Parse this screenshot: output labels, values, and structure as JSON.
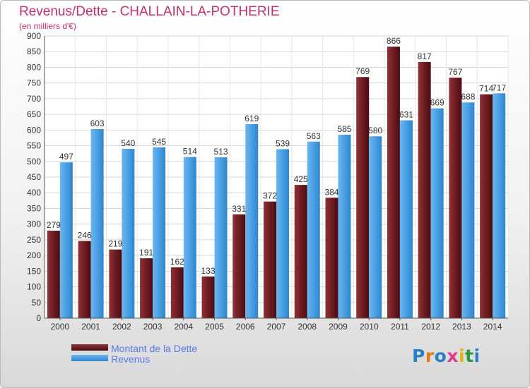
{
  "header": {
    "title": "Revenus/Dette - CHALLAIN-LA-POTHERIE",
    "subtitle": "(en milliers d'€)"
  },
  "colors": {
    "dette": "#6b1a1f",
    "revenus": "#4a9fe3",
    "title": "#c0306f",
    "legend_text": "#5a78e6"
  },
  "legend": {
    "dette_label": "Montant de la Dette",
    "revenus_label": "Revenus"
  },
  "logo": {
    "letters": [
      "P",
      "r",
      "o",
      "x",
      "i",
      "t",
      "i"
    ],
    "colors": [
      "#2a7fc8",
      "#e07a12",
      "#2a7fc8",
      "#e03a8c",
      "#e0b812",
      "#2a9a3a",
      "#2a7fc8"
    ]
  },
  "chart_data": {
    "type": "bar",
    "title": "Revenus/Dette - CHALLAIN-LA-POTHERIE",
    "subtitle": "(en milliers d'€)",
    "xlabel": "",
    "ylabel": "",
    "ylim": [
      0,
      900
    ],
    "ytick_step": 50,
    "grid": true,
    "legend_position": "bottom-left",
    "categories": [
      "2000",
      "2001",
      "2002",
      "2003",
      "2004",
      "2005",
      "2006",
      "2007",
      "2008",
      "2009",
      "2010",
      "2011",
      "2012",
      "2013",
      "2014"
    ],
    "series": [
      {
        "name": "Montant de la Dette",
        "values": [
          279,
          246,
          219,
          191,
          162,
          133,
          331,
          372,
          425,
          384,
          769,
          866,
          817,
          767,
          714
        ]
      },
      {
        "name": "Revenus",
        "values": [
          497,
          603,
          540,
          545,
          514,
          513,
          619,
          539,
          563,
          585,
          580,
          631,
          669,
          688,
          717
        ]
      }
    ]
  }
}
